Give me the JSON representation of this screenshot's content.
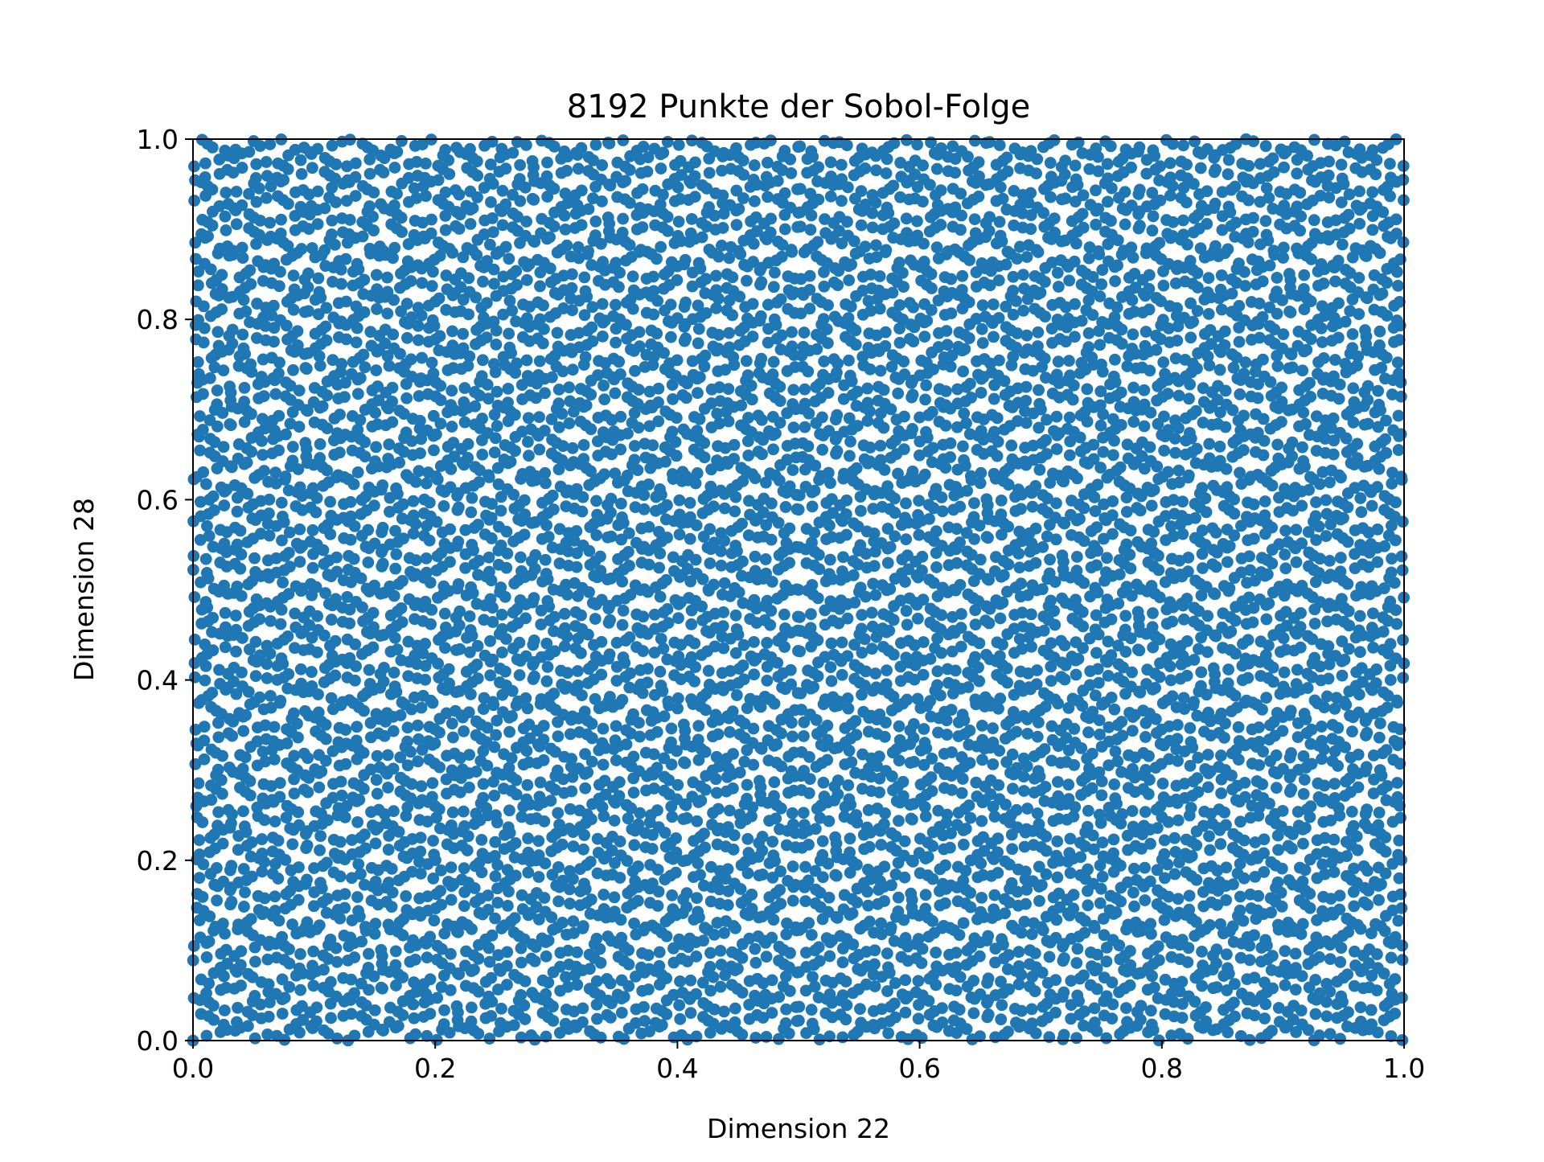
{
  "chart_data": {
    "type": "scatter",
    "title": "8192 Punkte der Sobol-Folge",
    "xlabel": "Dimension 22",
    "ylabel": "Dimension 28",
    "xlim": [
      0.0,
      1.0
    ],
    "ylim": [
      0.0,
      1.0
    ],
    "xticks": [
      "0.0",
      "0.2",
      "0.4",
      "0.6",
      "0.8",
      "1.0"
    ],
    "yticks": [
      "0.0",
      "0.2",
      "0.4",
      "0.6",
      "0.8",
      "1.0"
    ],
    "point_count": 8192,
    "sequence": "sobol",
    "sobol_dimensions": {
      "x": 22,
      "y": 28
    },
    "grid": false,
    "legend": "none",
    "series": [
      {
        "marker": "filled-circle",
        "color": "#1f77b4",
        "count": 8192
      }
    ]
  }
}
